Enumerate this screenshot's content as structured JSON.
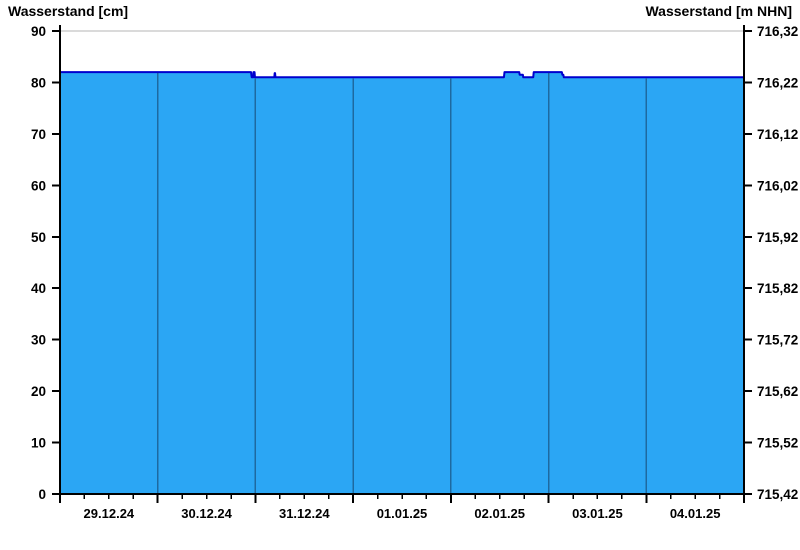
{
  "header": {
    "left_title": "Wasserstand [cm]",
    "right_title": "Wasserstand [m NHN]"
  },
  "chart_data": {
    "type": "area",
    "title": "",
    "legend": null,
    "grid": "day-separators-inside-area-only",
    "y_left": {
      "label": "Wasserstand [cm]",
      "min": 0,
      "max": 90,
      "tick_step": 10,
      "tick_labels": [
        "0",
        "10",
        "20",
        "30",
        "40",
        "50",
        "60",
        "70",
        "80",
        "90"
      ]
    },
    "y_right": {
      "label": "Wasserstand [m NHN]",
      "min": 715.42,
      "max": 716.32,
      "tick_labels": [
        "715,42",
        "715,52",
        "715,62",
        "715,72",
        "715,82",
        "715,92",
        "716,02",
        "716,12",
        "716,22",
        "716,32"
      ]
    },
    "x": {
      "days": 7,
      "minor_ticks_per_day": 4,
      "day_labels": [
        "29.12.24",
        "30.12.24",
        "31.12.24",
        "01.01.25",
        "02.01.25",
        "03.01.25",
        "04.01.25"
      ]
    },
    "series": [
      {
        "name": "Wasserstand",
        "unit": "cm",
        "points": [
          [
            0.0,
            82
          ],
          [
            1.955,
            82
          ],
          [
            1.962,
            81
          ],
          [
            1.976,
            81
          ],
          [
            1.98,
            82
          ],
          [
            1.991,
            82
          ],
          [
            1.995,
            81
          ],
          [
            2.193,
            81
          ],
          [
            2.197,
            81.8
          ],
          [
            2.201,
            81.8
          ],
          [
            2.205,
            81
          ],
          [
            4.543,
            81
          ],
          [
            4.549,
            82
          ],
          [
            4.7,
            82
          ],
          [
            4.704,
            81.5
          ],
          [
            4.737,
            81.5
          ],
          [
            4.741,
            81
          ],
          [
            4.843,
            81
          ],
          [
            4.848,
            82
          ],
          [
            5.136,
            82
          ],
          [
            5.141,
            81.5
          ],
          [
            5.151,
            81.5
          ],
          [
            5.156,
            81
          ],
          [
            7.0,
            81
          ]
        ]
      }
    ],
    "colors": {
      "area_fill": "#2BA6F4",
      "line": "#0000CD",
      "day_separator": "#1E699F",
      "frame_top": "#DADADA",
      "axis": "#000000",
      "background": "#FFFFFF"
    }
  }
}
